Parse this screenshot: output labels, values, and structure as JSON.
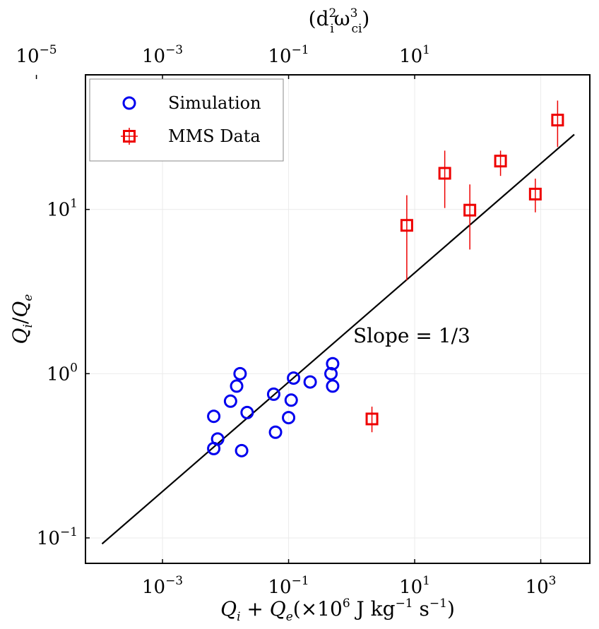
{
  "chart_data": {
    "type": "scatter",
    "x_scale": "log",
    "y_scale": "log",
    "xlim": [
      6e-05,
      6000
    ],
    "ylim": [
      0.07,
      66
    ],
    "grid": true,
    "x_ticks": [
      {
        "value": 0.001,
        "base": "10",
        "exp": "−3"
      },
      {
        "value": 0.1,
        "base": "10",
        "exp": "−1"
      },
      {
        "value": 10,
        "base": "10",
        "exp": "1"
      },
      {
        "value": 1000,
        "base": "10",
        "exp": "3"
      }
    ],
    "y_ticks": [
      {
        "value": 0.1,
        "base": "10",
        "exp": "−1"
      },
      {
        "value": 1,
        "base": "10",
        "exp": "0"
      },
      {
        "value": 10,
        "base": "10",
        "exp": "1"
      }
    ],
    "top_axis": {
      "label": "(d²ᵢω³꜀ᵢ)",
      "label_main": "(d",
      "label_sup1": "2",
      "label_sub1": "i",
      "label_mid": "ω",
      "label_sup2": "3",
      "label_sub2": "ci",
      "label_end": ")",
      "ticks": [
        {
          "value": 1e-05,
          "base": "10",
          "exp": "−5"
        },
        {
          "value": 0.001,
          "base": "10",
          "exp": "−3"
        },
        {
          "value": 0.1,
          "base": "10",
          "exp": "−1"
        },
        {
          "value": 10,
          "base": "10",
          "exp": "1"
        }
      ],
      "top_to_bottom_factor": 1
    },
    "xlabel": "Qᵢ + Qₑ(×10⁶ J kg⁻¹ s⁻¹)",
    "xlabel_parts": {
      "q1": "Q",
      "s1": "i",
      "plus": " + ",
      "q2": "Q",
      "s2": "e",
      "open": "(×10",
      "exp6": "6",
      "unit": " J kg",
      "expm1a": "−1",
      "s": " s",
      "expm1b": "−1",
      "close": ")"
    },
    "ylabel": "Qᵢ/Qₑ",
    "ylabel_parts": {
      "q1": "Q",
      "s1": "i",
      "slash": "/",
      "q2": "Q",
      "s2": "e"
    },
    "legend": {
      "position": "top-left",
      "entries": [
        "Simulation",
        "MMS Data"
      ]
    },
    "series": [
      {
        "name": "Simulation",
        "marker": "circle",
        "color": "#0000ee",
        "points": [
          {
            "x": 0.0065,
            "y": 0.55
          },
          {
            "x": 0.0075,
            "y": 0.4
          },
          {
            "x": 0.0065,
            "y": 0.35
          },
          {
            "x": 0.012,
            "y": 0.68
          },
          {
            "x": 0.015,
            "y": 0.84
          },
          {
            "x": 0.017,
            "y": 1.0
          },
          {
            "x": 0.018,
            "y": 0.34
          },
          {
            "x": 0.022,
            "y": 0.58
          },
          {
            "x": 0.058,
            "y": 0.75
          },
          {
            "x": 0.062,
            "y": 0.44
          },
          {
            "x": 0.1,
            "y": 0.54
          },
          {
            "x": 0.11,
            "y": 0.69
          },
          {
            "x": 0.12,
            "y": 0.94
          },
          {
            "x": 0.22,
            "y": 0.89
          },
          {
            "x": 0.47,
            "y": 1.0
          },
          {
            "x": 0.5,
            "y": 1.15
          },
          {
            "x": 0.5,
            "y": 0.84
          }
        ]
      },
      {
        "name": "MMS Data",
        "marker": "square",
        "color": "#ee0000",
        "points": [
          {
            "x": 2.1,
            "y": 0.53,
            "ylow": 0.44,
            "yhigh": 0.63
          },
          {
            "x": 7.5,
            "y": 8.0,
            "ylow": 3.7,
            "yhigh": 12.2
          },
          {
            "x": 30,
            "y": 16.6,
            "ylow": 10.2,
            "yhigh": 22.8
          },
          {
            "x": 75,
            "y": 9.9,
            "ylow": 5.7,
            "yhigh": 14.2
          },
          {
            "x": 230,
            "y": 19.7,
            "ylow": 16.0,
            "yhigh": 22.8
          },
          {
            "x": 820,
            "y": 12.4,
            "ylow": 9.6,
            "yhigh": 15.4
          },
          {
            "x": 1850,
            "y": 35.0,
            "ylow": 24.0,
            "yhigh": 46.0
          }
        ]
      }
    ],
    "fit_line": {
      "x": [
        0.00011,
        3400
      ],
      "y": [
        0.092,
        28.6
      ],
      "color": "#000000"
    },
    "annotation": {
      "text": "Slope = 1/3",
      "x": 1.0,
      "y": 1.6
    }
  }
}
